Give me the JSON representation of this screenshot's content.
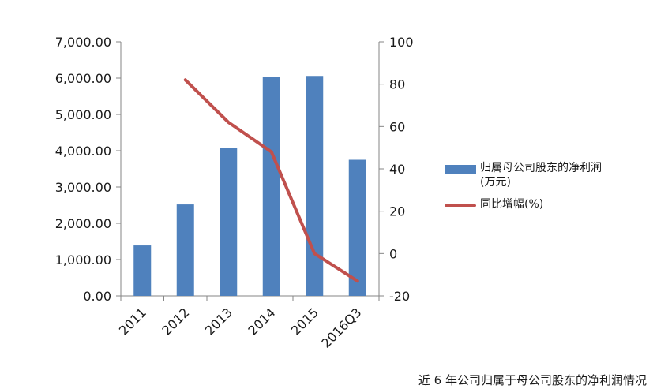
{
  "chart_data": {
    "type": "bar",
    "categories": [
      "2011",
      "2012",
      "2013",
      "2014",
      "2015",
      "2016Q3"
    ],
    "series": [
      {
        "name": "归属母公司股东的净利润(万元)",
        "type": "bar",
        "axis": "left",
        "color": "#4f81bd",
        "values": [
          1390,
          2520,
          4080,
          6040,
          6060,
          3750
        ]
      },
      {
        "name": "同比增幅(%)",
        "type": "line",
        "axis": "right",
        "color": "#c0504d",
        "values": [
          null,
          82,
          62,
          48,
          0,
          -13
        ]
      }
    ],
    "y_left": {
      "range": [
        0,
        7000
      ],
      "ticks": [
        "0.00",
        "1,000.00",
        "2,000.00",
        "3,000.00",
        "4,000.00",
        "5,000.00",
        "6,000.00",
        "7,000.00"
      ]
    },
    "y_right": {
      "range": [
        -20,
        100
      ],
      "ticks": [
        "-20",
        "0",
        "20",
        "40",
        "60",
        "80",
        "100"
      ]
    },
    "grid": false,
    "legend_position": "right"
  },
  "legend": {
    "bar_label": "归属母公司股东的净利润(万元)",
    "line_label": "同比增幅(%)"
  },
  "caption": "近 6 年公司归属于母公司股东的净利润情况"
}
